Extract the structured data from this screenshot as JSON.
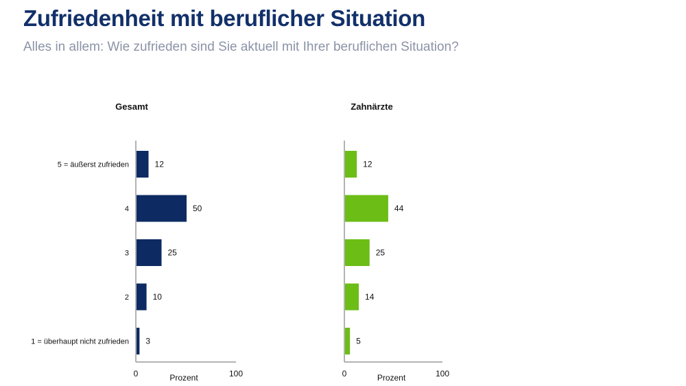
{
  "header": {
    "title": "Zufriedenheit mit beruflicher Situation",
    "subtitle": "Alles in allem: Wie zufrieden sind Sie aktuell mit Ihrer beruflichen Situation?"
  },
  "chart_data": [
    {
      "type": "bar",
      "orientation": "horizontal",
      "title": "Gesamt",
      "categories": [
        "5 = äußerst zufrieden",
        "4",
        "3",
        "2",
        "1 = überhaupt nicht zufrieden"
      ],
      "values": [
        12,
        50,
        25,
        10,
        3
      ],
      "xlabel": "Prozent",
      "ylabel": "",
      "xlim": [
        0,
        100
      ],
      "xticks": [
        "0",
        "100"
      ],
      "color": "#0d2b62",
      "grid": false,
      "legend": "none"
    },
    {
      "type": "bar",
      "orientation": "horizontal",
      "title": "Zahnärzte",
      "categories": [
        "5 = äußerst zufrieden",
        "4",
        "3",
        "2",
        "1 = überhaupt nicht zufrieden"
      ],
      "values": [
        12,
        44,
        25,
        14,
        5
      ],
      "xlabel": "Prozent",
      "ylabel": "",
      "xlim": [
        0,
        100
      ],
      "xticks": [
        "0",
        "100"
      ],
      "color": "#6cbd16",
      "grid": false,
      "legend": "none"
    }
  ]
}
